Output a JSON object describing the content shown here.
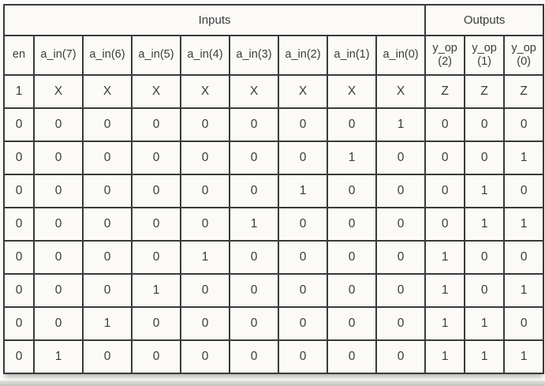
{
  "chart_data": {
    "type": "table",
    "title": "",
    "column_groups": [
      {
        "label": "Inputs",
        "span": 9
      },
      {
        "label": "Outputs",
        "span": 3
      }
    ],
    "columns": [
      "en",
      "a_in(7)",
      "a_in(6)",
      "a_in(5)",
      "a_in(4)",
      "a_in(3)",
      "a_in(2)",
      "a_in(1)",
      "a_in(0)",
      "y_op (2)",
      "y_op (1)",
      "y_op (0)"
    ],
    "rows": [
      [
        "1",
        "X",
        "X",
        "X",
        "X",
        "X",
        "X",
        "X",
        "X",
        "Z",
        "Z",
        "Z"
      ],
      [
        "0",
        "0",
        "0",
        "0",
        "0",
        "0",
        "0",
        "0",
        "1",
        "0",
        "0",
        "0"
      ],
      [
        "0",
        "0",
        "0",
        "0",
        "0",
        "0",
        "0",
        "1",
        "0",
        "0",
        "0",
        "1"
      ],
      [
        "0",
        "0",
        "0",
        "0",
        "0",
        "0",
        "1",
        "0",
        "0",
        "0",
        "1",
        "0"
      ],
      [
        "0",
        "0",
        "0",
        "0",
        "0",
        "1",
        "0",
        "0",
        "0",
        "0",
        "1",
        "1"
      ],
      [
        "0",
        "0",
        "0",
        "0",
        "1",
        "0",
        "0",
        "0",
        "0",
        "1",
        "0",
        "0"
      ],
      [
        "0",
        "0",
        "0",
        "1",
        "0",
        "0",
        "0",
        "0",
        "0",
        "1",
        "0",
        "1"
      ],
      [
        "0",
        "0",
        "1",
        "0",
        "0",
        "0",
        "0",
        "0",
        "0",
        "1",
        "1",
        "0"
      ],
      [
        "0",
        "1",
        "0",
        "0",
        "0",
        "0",
        "0",
        "0",
        "0",
        "1",
        "1",
        "1"
      ]
    ],
    "layout_hints": {
      "grid": true,
      "group_header_row": true,
      "en_column_narrow": true
    },
    "colors": {
      "border": "#3a3a3a",
      "text": "#3b3b3b",
      "cell_bg": "#fbfaf7"
    }
  }
}
